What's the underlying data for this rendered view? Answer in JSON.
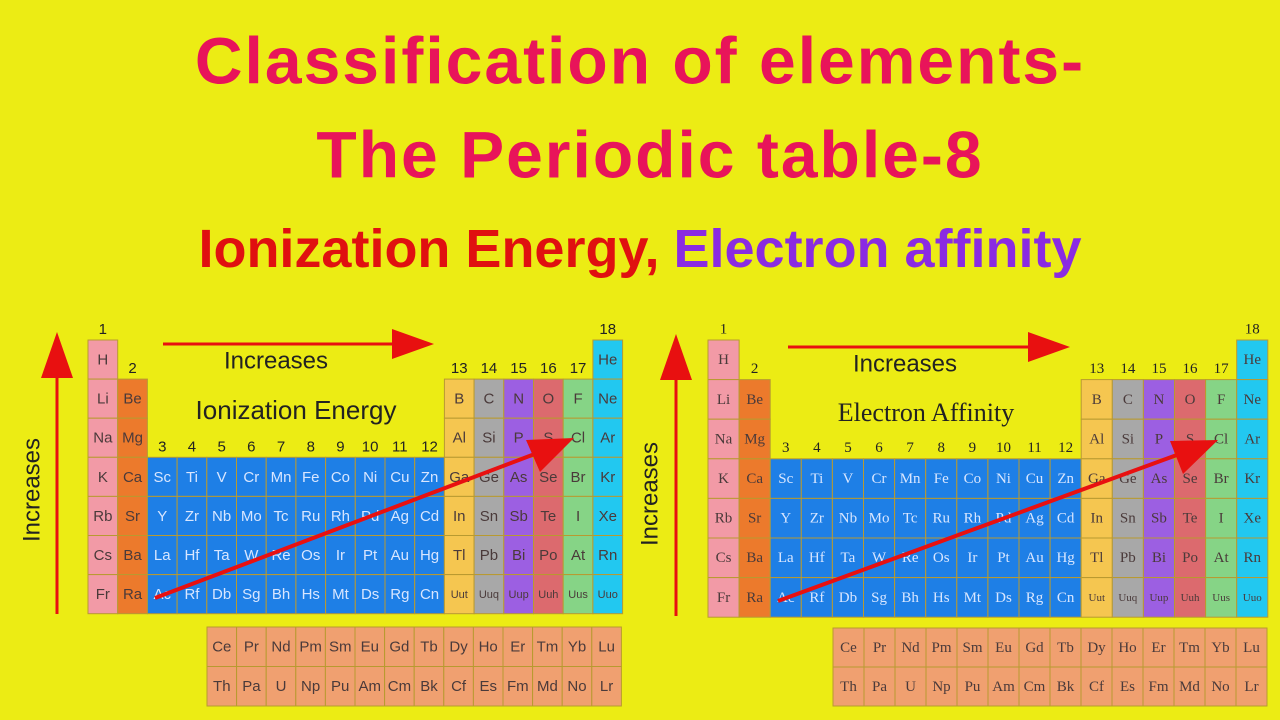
{
  "header": {
    "title_line1": "Classification of elements-",
    "title_line2": "The Periodic table-8",
    "subtitle_part1": "Ionization Energy,",
    "subtitle_part2": "Electron affinity"
  },
  "panels": [
    {
      "title": "Ionization Energy",
      "increases_x": "Increases",
      "increases_y": "Increases",
      "group_labels": [
        "1",
        "2",
        "3",
        "4",
        "5",
        "6",
        "7",
        "8",
        "9",
        "10",
        "11",
        "12",
        "13",
        "14",
        "15",
        "16",
        "17",
        "18"
      ],
      "rows": [
        [
          "H",
          null,
          null,
          null,
          null,
          null,
          null,
          null,
          null,
          null,
          null,
          null,
          null,
          null,
          null,
          null,
          null,
          "He"
        ],
        [
          "Li",
          "Be",
          null,
          null,
          null,
          null,
          null,
          null,
          null,
          null,
          null,
          null,
          "B",
          "C",
          "N",
          "O",
          "F",
          "Ne"
        ],
        [
          "Na",
          "Mg",
          null,
          null,
          null,
          null,
          null,
          null,
          null,
          null,
          null,
          null,
          "Al",
          "Si",
          "P",
          "S",
          "Cl",
          "Ar"
        ],
        [
          "K",
          "Ca",
          "Sc",
          "Ti",
          "V",
          "Cr",
          "Mn",
          "Fe",
          "Co",
          "Ni",
          "Cu",
          "Zn",
          "Ga",
          "Ge",
          "As",
          "Se",
          "Br",
          "Kr"
        ],
        [
          "Rb",
          "Sr",
          "Y",
          "Zr",
          "Nb",
          "Mo",
          "Tc",
          "Ru",
          "Rh",
          "Pd",
          "Ag",
          "Cd",
          "In",
          "Sn",
          "Sb",
          "Te",
          "I",
          "Xe"
        ],
        [
          "Cs",
          "Ba",
          "La",
          "Hf",
          "Ta",
          "W",
          "Re",
          "Os",
          "Ir",
          "Pt",
          "Au",
          "Hg",
          "Tl",
          "Pb",
          "Bi",
          "Po",
          "At",
          "Rn"
        ],
        [
          "Fr",
          "Ra",
          "Ac",
          "Rf",
          "Db",
          "Sg",
          "Bh",
          "Hs",
          "Mt",
          "Ds",
          "Rg",
          "Cn",
          "Uut",
          "Uuq",
          "Uup",
          "Uuh",
          "Uus",
          "Uuo"
        ]
      ],
      "f_rows": [
        [
          "Ce",
          "Pr",
          "Nd",
          "Pm",
          "Sm",
          "Eu",
          "Gd",
          "Tb",
          "Dy",
          "Ho",
          "Er",
          "Tm",
          "Yb",
          "Lu"
        ],
        [
          "Th",
          "Pa",
          "U",
          "Np",
          "Pu",
          "Am",
          "Cm",
          "Bk",
          "Cf",
          "Es",
          "Fm",
          "Md",
          "No",
          "Lr"
        ]
      ]
    },
    {
      "title": "Electron Affinity",
      "increases_x": "Increases",
      "increases_y": "Increases",
      "group_labels": [
        "1",
        "2",
        "3",
        "4",
        "5",
        "6",
        "7",
        "8",
        "9",
        "10",
        "11",
        "12",
        "13",
        "14",
        "15",
        "16",
        "17",
        "18"
      ],
      "rows": [
        [
          "H",
          null,
          null,
          null,
          null,
          null,
          null,
          null,
          null,
          null,
          null,
          null,
          null,
          null,
          null,
          null,
          null,
          "He"
        ],
        [
          "Li",
          "Be",
          null,
          null,
          null,
          null,
          null,
          null,
          null,
          null,
          null,
          null,
          "B",
          "C",
          "N",
          "O",
          "F",
          "Ne"
        ],
        [
          "Na",
          "Mg",
          null,
          null,
          null,
          null,
          null,
          null,
          null,
          null,
          null,
          null,
          "Al",
          "Si",
          "P",
          "S",
          "Cl",
          "Ar"
        ],
        [
          "K",
          "Ca",
          "Sc",
          "Ti",
          "V",
          "Cr",
          "Mn",
          "Fe",
          "Co",
          "Ni",
          "Cu",
          "Zn",
          "Ga",
          "Ge",
          "As",
          "Se",
          "Br",
          "Kr"
        ],
        [
          "Rb",
          "Sr",
          "Y",
          "Zr",
          "Nb",
          "Mo",
          "Tc",
          "Ru",
          "Rh",
          "Pd",
          "Ag",
          "Cd",
          "In",
          "Sn",
          "Sb",
          "Te",
          "I",
          "Xe"
        ],
        [
          "Cs",
          "Ba",
          "La",
          "Hf",
          "Ta",
          "W",
          "Re",
          "Os",
          "Ir",
          "Pt",
          "Au",
          "Hg",
          "Tl",
          "Pb",
          "Bi",
          "Po",
          "At",
          "Rn"
        ],
        [
          "Fr",
          "Ra",
          "Ac",
          "Rf",
          "Db",
          "Sg",
          "Bh",
          "Hs",
          "Mt",
          "Ds",
          "Rg",
          "Cn",
          "Uut",
          "Uuq",
          "Uup",
          "Uuh",
          "Uus",
          "Uuo"
        ]
      ],
      "f_rows": [
        [
          "Ce",
          "Pr",
          "Nd",
          "Pm",
          "Sm",
          "Eu",
          "Gd",
          "Tb",
          "Dy",
          "Ho",
          "Er",
          "Tm",
          "Yb",
          "Lu"
        ],
        [
          "Th",
          "Pa",
          "U",
          "Np",
          "Pu",
          "Am",
          "Cm",
          "Bk",
          "Cf",
          "Es",
          "Fm",
          "Md",
          "No",
          "Lr"
        ]
      ]
    }
  ]
}
